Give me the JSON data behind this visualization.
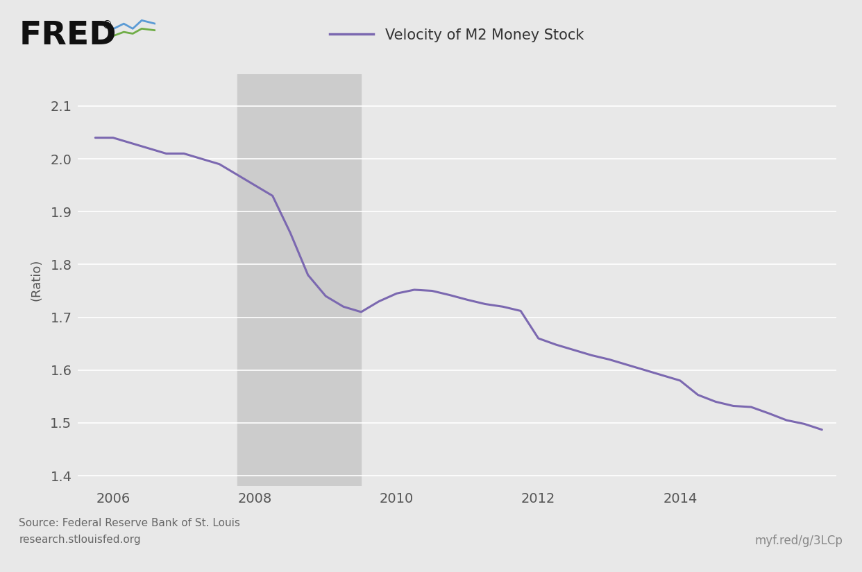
{
  "title": "Velocity of M2 Money Stock",
  "ylabel": "(Ratio)",
  "line_color": "#7B68B0",
  "line_width": 2.2,
  "background_color": "#e8e8e8",
  "plot_bg_color": "#e8e8e8",
  "recession_color": "#cccccc",
  "recession_alpha": 1.0,
  "recession_start": 2007.75,
  "recession_end": 2009.5,
  "ylim": [
    1.38,
    2.16
  ],
  "xlim": [
    2005.5,
    2016.2
  ],
  "yticks": [
    1.4,
    1.5,
    1.6,
    1.7,
    1.8,
    1.9,
    2.0,
    2.1
  ],
  "xticks": [
    2006,
    2008,
    2010,
    2012,
    2014
  ],
  "source_line1": "Source: Federal Reserve Bank of St. Louis",
  "source_line2": "research.stlouisfed.org",
  "url_text": "myf.red/g/3LCp",
  "data_x": [
    2005.75,
    2006.0,
    2006.25,
    2006.5,
    2006.75,
    2007.0,
    2007.25,
    2007.5,
    2007.75,
    2008.0,
    2008.25,
    2008.5,
    2008.75,
    2009.0,
    2009.25,
    2009.5,
    2009.75,
    2010.0,
    2010.25,
    2010.5,
    2010.75,
    2011.0,
    2011.25,
    2011.5,
    2011.75,
    2012.0,
    2012.25,
    2012.5,
    2012.75,
    2013.0,
    2013.25,
    2013.5,
    2013.75,
    2014.0,
    2014.25,
    2014.5,
    2014.75,
    2015.0,
    2015.25,
    2015.5,
    2015.75,
    2016.0
  ],
  "data_y": [
    2.04,
    2.04,
    2.03,
    2.02,
    2.01,
    2.01,
    2.0,
    1.99,
    1.97,
    1.95,
    1.93,
    1.86,
    1.78,
    1.74,
    1.72,
    1.71,
    1.73,
    1.745,
    1.752,
    1.75,
    1.742,
    1.733,
    1.725,
    1.72,
    1.712,
    1.66,
    1.648,
    1.638,
    1.628,
    1.62,
    1.61,
    1.6,
    1.59,
    1.58,
    1.553,
    1.54,
    1.532,
    1.53,
    1.518,
    1.505,
    1.498,
    1.487
  ]
}
